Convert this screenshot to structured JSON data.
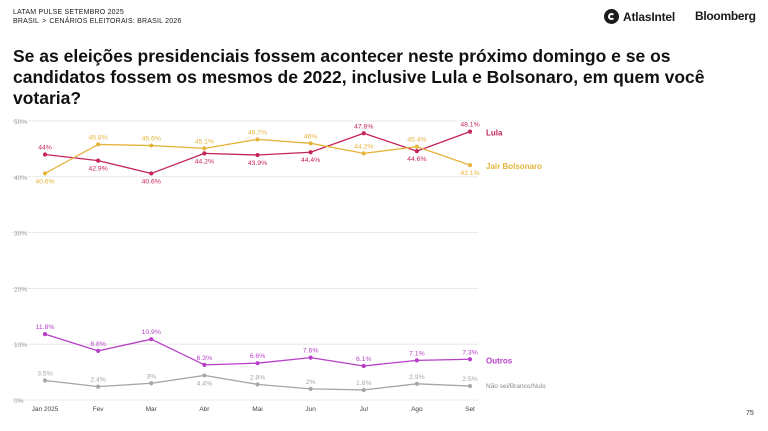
{
  "header": {
    "kicker_line1": "LATAM PULSE SETEMBRO 2025",
    "kicker_crumb1": "BRASIL",
    "kicker_sep": ">",
    "kicker_crumb2": "CENÁRIOS ELEITORAIS: BRASIL 2026",
    "brand_atlas": "AtlasIntel",
    "brand_bloomberg": "Bloomberg"
  },
  "page_number": "75",
  "colors": {
    "lula": "#c4245a",
    "bolsonaro": "#e5b43c",
    "outros": "#b63fc6",
    "nao_sei": "#a6a6a6",
    "grid": "#e3e3e3",
    "axis_text": "#9a9a9a"
  },
  "chart_data": {
    "type": "line",
    "title": "Se as eleições presidenciais fossem acontecer neste próximo domingo e se os candidatos fossem os mesmos de 2022, inclusive Lula e Bolsonaro, em quem você votaria?",
    "xlabel": "",
    "ylabel": "",
    "categories": [
      "Jan 2025",
      "Fev",
      "Mar",
      "Abr",
      "Mai",
      "Jun",
      "Jul",
      "Ago",
      "Set"
    ],
    "ylim": [
      0,
      50
    ],
    "y_ticks": [
      "0%",
      "10%",
      "20%",
      "30%",
      "40%",
      "50%"
    ],
    "y_tick_values": [
      0,
      10,
      20,
      30,
      40,
      50
    ],
    "grid": true,
    "legend": "end-of-line labels",
    "series": [
      {
        "name": "Lula",
        "color_key": "lula",
        "values": [
          44,
          42.9,
          40.6,
          44.2,
          43.9,
          44.4,
          47.8,
          44.6,
          48.1
        ],
        "labels": [
          "44%",
          "42.9%",
          "40.6%",
          "44.2%",
          "43.9%",
          "44.4%",
          "47.8%",
          "44.6%",
          "48.1%"
        ],
        "label_pos": [
          "above",
          "below",
          "below",
          "below",
          "below",
          "below",
          "above",
          "below",
          "above"
        ]
      },
      {
        "name": "Jair Bolsonaro",
        "color_key": "bolsonaro",
        "values": [
          40.6,
          45.8,
          45.6,
          45.1,
          46.7,
          46,
          44.2,
          45.4,
          42.1
        ],
        "labels": [
          "40.6%",
          "45.8%",
          "45.6%",
          "45.1%",
          "46.7%",
          "46%",
          "44.2%",
          "45.4%",
          "42.1%"
        ],
        "label_pos": [
          "below",
          "above",
          "above",
          "above",
          "above",
          "above",
          "above",
          "above",
          "below"
        ]
      },
      {
        "name": "Outros",
        "color_key": "outros",
        "values": [
          11.8,
          8.8,
          10.9,
          6.3,
          6.6,
          7.6,
          6.1,
          7.1,
          7.3
        ],
        "labels": [
          "11.8%",
          "8.8%",
          "10.9%",
          "6.3%",
          "6.6%",
          "7.6%",
          "6.1%",
          "7.1%",
          "7.3%"
        ],
        "label_pos": [
          "above",
          "above",
          "above",
          "above",
          "above",
          "above",
          "above",
          "above",
          "above"
        ]
      },
      {
        "name": "Não sei/Branco/Nulo",
        "color_key": "nao_sei",
        "values": [
          3.5,
          2.4,
          3,
          4.4,
          2.8,
          2,
          1.8,
          2.9,
          2.5
        ],
        "labels": [
          "3.5%",
          "2.4%",
          "3%",
          "4.4%",
          "2.8%",
          "2%",
          "1.8%",
          "2.9%",
          "2.5%"
        ],
        "label_pos": [
          "above",
          "above",
          "above",
          "below",
          "above",
          "above",
          "above",
          "above",
          "above"
        ]
      }
    ]
  }
}
